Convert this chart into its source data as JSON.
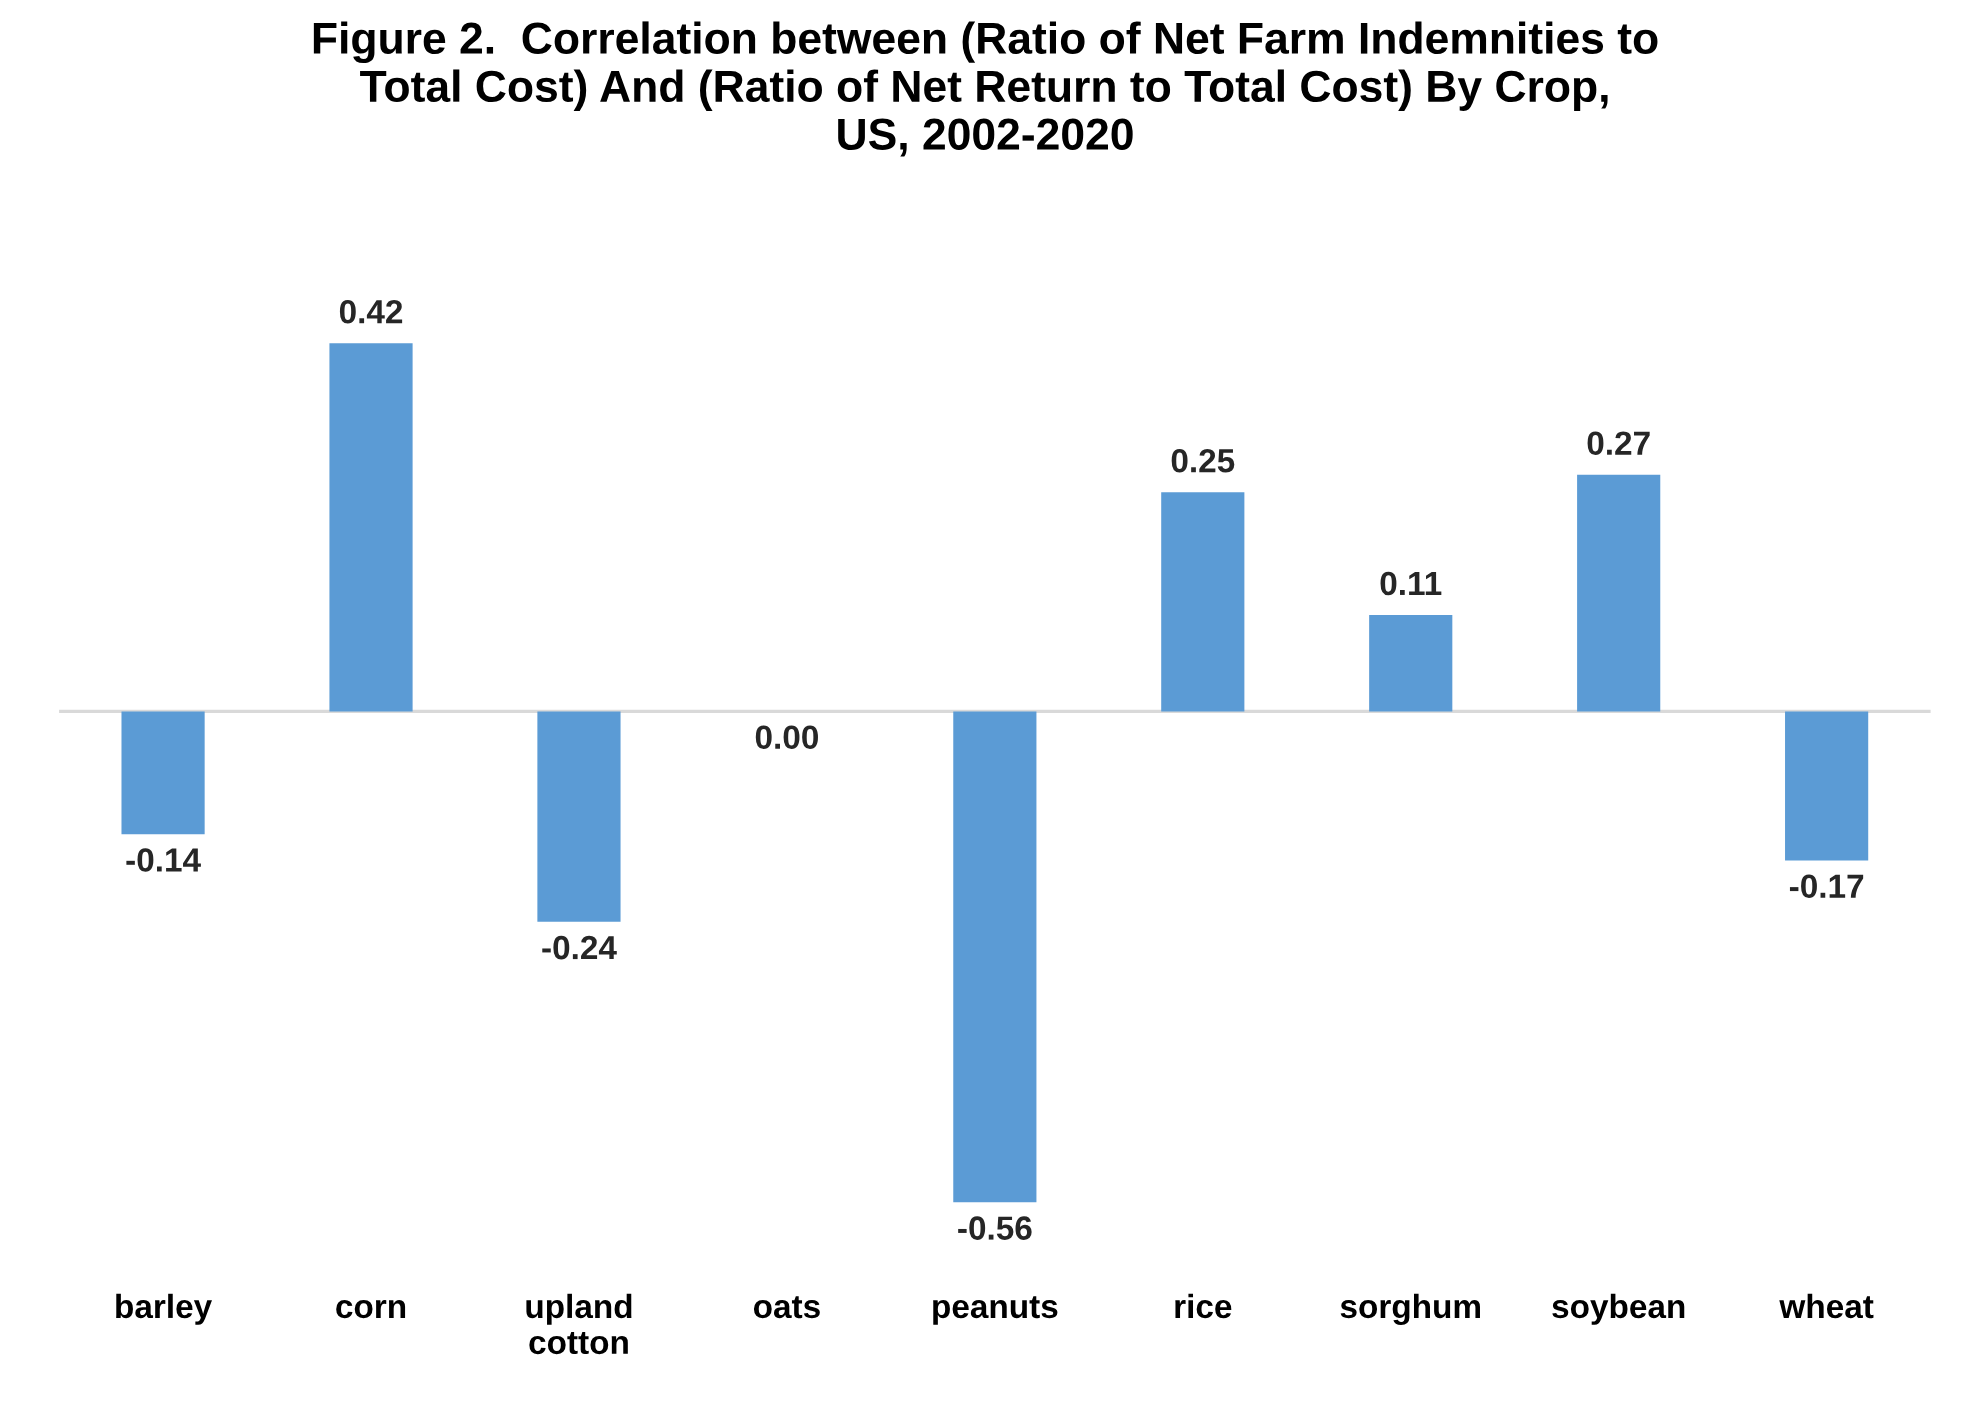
{
  "chart_data": {
    "type": "bar",
    "title": "Figure 2.  Correlation between (Ratio of Net Farm Indemnities to\nTotal Cost) And (Ratio of Net Return to Total Cost) By Crop,\nUS, 2002-2020",
    "categories": [
      "barley",
      "corn",
      "upland\ncotton",
      "oats",
      "peanuts",
      "rice",
      "sorghum",
      "soybean",
      "wheat"
    ],
    "values": [
      -0.14,
      0.42,
      -0.24,
      0.0,
      -0.56,
      0.25,
      0.11,
      0.27,
      -0.17
    ],
    "value_labels": [
      "-0.14",
      "0.42",
      "-0.24",
      "0.00",
      "-0.56",
      "0.25",
      "0.11",
      "0.27",
      "-0.17"
    ],
    "color": "#5b9bd5",
    "grid": false,
    "legend": false
  }
}
